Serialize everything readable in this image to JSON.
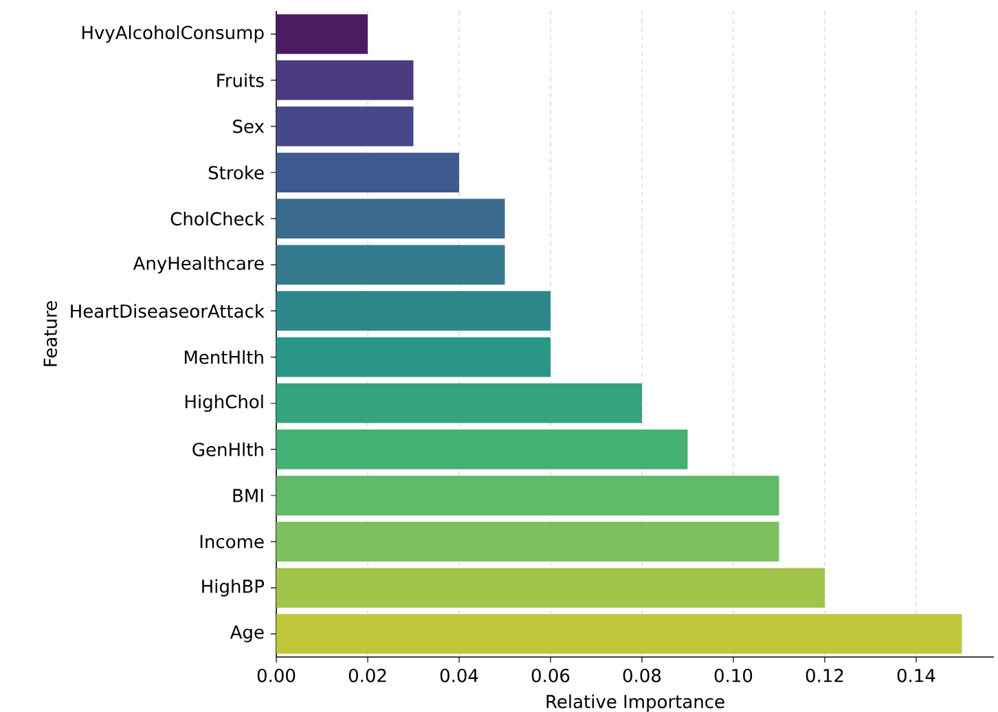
{
  "chart_data": {
    "type": "bar",
    "orientation": "horizontal",
    "xlabel": "Relative Importance",
    "ylabel": "Feature",
    "categories": [
      "HvyAlcoholConsump",
      "Fruits",
      "Sex",
      "Stroke",
      "CholCheck",
      "AnyHealthcare",
      "HeartDiseaseorAttack",
      "MentHlth",
      "HighChol",
      "GenHlth",
      "BMI",
      "Income",
      "HighBP",
      "Age"
    ],
    "values": [
      0.02,
      0.03,
      0.03,
      0.04,
      0.05,
      0.05,
      0.06,
      0.06,
      0.08,
      0.09,
      0.11,
      0.11,
      0.12,
      0.15
    ],
    "colors": [
      "#4b1c62",
      "#4a3a80",
      "#47488a",
      "#3f5a8f",
      "#3a6b8d",
      "#347a8c",
      "#2e878a",
      "#2a9786",
      "#34a37e",
      "#45b073",
      "#5fbb67",
      "#7cc05d",
      "#a0c34a",
      "#c0c63a"
    ],
    "xlim": [
      0,
      0.157
    ],
    "xticks": [
      {
        "value": 0,
        "label": "0.00"
      },
      {
        "value": 0.02,
        "label": "0.02"
      },
      {
        "value": 0.04,
        "label": "0.04"
      },
      {
        "value": 0.06,
        "label": "0.06"
      },
      {
        "value": 0.08,
        "label": "0.08"
      },
      {
        "value": 0.1,
        "label": "0.10"
      },
      {
        "value": 0.12,
        "label": "0.12"
      },
      {
        "value": 0.14,
        "label": "0.14"
      }
    ],
    "grid": "x"
  }
}
